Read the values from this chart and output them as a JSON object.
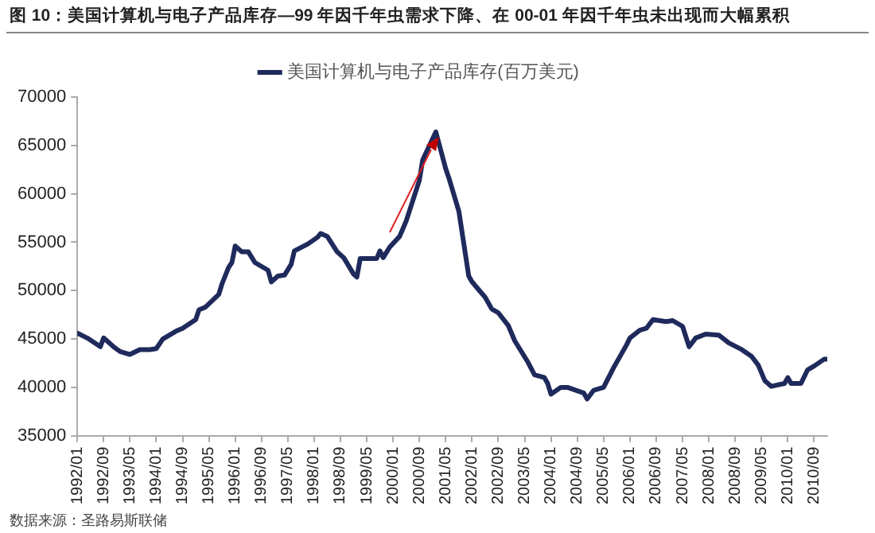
{
  "chart_data": {
    "type": "line",
    "title": "图 10：美国计算机与电子产品库存—99 年因千年虫需求下降、在 00-01 年因千年虫未出现而大幅累积",
    "x": [
      "1992-01",
      "1992-04",
      "1992-08",
      "1992-09",
      "1992-12",
      "1993-02",
      "1993-05",
      "1993-08",
      "1993-11",
      "1994-01",
      "1994-03",
      "1994-07",
      "1994-09",
      "1995-01",
      "1995-02",
      "1995-04",
      "1995-08",
      "1995-09",
      "1995-11",
      "1995-12",
      "1996-01",
      "1996-03",
      "1996-05",
      "1996-07",
      "1996-11",
      "1996-12",
      "1997-02",
      "1997-04",
      "1997-06",
      "1997-07",
      "1997-11",
      "1998-02",
      "1998-03",
      "1998-05",
      "1998-08",
      "1998-10",
      "1999-01",
      "1999-02",
      "1999-03",
      "1999-08",
      "1999-09",
      "1999-10",
      "1999-12",
      "2000-03",
      "2000-05",
      "2000-09",
      "2000-10",
      "2001-02",
      "2001-05",
      "2001-06",
      "2001-09",
      "2001-12",
      "2002-01",
      "2002-05",
      "2002-07",
      "2002-09",
      "2002-12",
      "2003-02",
      "2003-06",
      "2003-08",
      "2003-11",
      "2003-12",
      "2004-01",
      "2004-04",
      "2004-06",
      "2004-11",
      "2004-12",
      "2005-02",
      "2005-05",
      "2005-08",
      "2005-12",
      "2006-01",
      "2006-04",
      "2006-06",
      "2006-08",
      "2006-12",
      "2007-02",
      "2007-05",
      "2007-07",
      "2007-09",
      "2007-12",
      "2008-04",
      "2008-07",
      "2008-11",
      "2009-02",
      "2009-04",
      "2009-06",
      "2009-08",
      "2009-12",
      "2010-01",
      "2010-02",
      "2010-05",
      "2010-07",
      "2010-09",
      "2010-12",
      "2011-01"
    ],
    "series": [
      {
        "name": "美国计算机与电子产品库存(百万美元)",
        "color": "#1f2a5c",
        "values": [
          45600,
          45100,
          44200,
          45100,
          44200,
          43700,
          43400,
          43900,
          43900,
          44000,
          45000,
          45800,
          46100,
          47000,
          48000,
          48300,
          49600,
          50700,
          52400,
          52900,
          54600,
          54000,
          54000,
          52900,
          52100,
          50900,
          51500,
          51600,
          52700,
          54100,
          54800,
          55500,
          55900,
          55600,
          54000,
          53400,
          51700,
          51400,
          53300,
          53300,
          54100,
          53400,
          54500,
          55600,
          57200,
          61400,
          63500,
          66400,
          62600,
          61600,
          58200,
          51500,
          50900,
          49300,
          48100,
          47700,
          46400,
          44800,
          42600,
          41300,
          41000,
          40400,
          39300,
          40000,
          40000,
          39400,
          38800,
          39700,
          40000,
          42000,
          44400,
          45100,
          45900,
          46100,
          47000,
          46800,
          46900,
          46300,
          44200,
          45100,
          45500,
          45400,
          44600,
          43900,
          43200,
          42300,
          40700,
          40100,
          40400,
          41000,
          40400,
          40400,
          41800,
          42200,
          42900,
          42900
        ]
      }
    ],
    "xlim": [
      "1992-01",
      "2011-01"
    ],
    "xticks": [
      {
        "value": "1992-01",
        "label": "1992/01"
      },
      {
        "value": "1992-09",
        "label": "1992/09"
      },
      {
        "value": "1993-05",
        "label": "1993/05"
      },
      {
        "value": "1994-01",
        "label": "1994/01"
      },
      {
        "value": "1994-09",
        "label": "1994/09"
      },
      {
        "value": "1995-05",
        "label": "1995/05"
      },
      {
        "value": "1996-01",
        "label": "1996/01"
      },
      {
        "value": "1996-09",
        "label": "1996/09"
      },
      {
        "value": "1997-05",
        "label": "1997/05"
      },
      {
        "value": "1998-01",
        "label": "1998/01"
      },
      {
        "value": "1998-09",
        "label": "1998/09"
      },
      {
        "value": "1999-05",
        "label": "1999/05"
      },
      {
        "value": "2000-01",
        "label": "2000/01"
      },
      {
        "value": "2000-09",
        "label": "2000/09"
      },
      {
        "value": "2001-05",
        "label": "2001/05"
      },
      {
        "value": "2002-01",
        "label": "2002/01"
      },
      {
        "value": "2002-09",
        "label": "2002/09"
      },
      {
        "value": "2003-05",
        "label": "2003/05"
      },
      {
        "value": "2004-01",
        "label": "2004/01"
      },
      {
        "value": "2004-09",
        "label": "2004/09"
      },
      {
        "value": "2005-05",
        "label": "2005/05"
      },
      {
        "value": "2006-01",
        "label": "2006/01"
      },
      {
        "value": "2006-09",
        "label": "2006/09"
      },
      {
        "value": "2007-05",
        "label": "2007/05"
      },
      {
        "value": "2008-01",
        "label": "2008/01"
      },
      {
        "value": "2008-09",
        "label": "2008/09"
      },
      {
        "value": "2009-05",
        "label": "2009/05"
      },
      {
        "value": "2010-01",
        "label": "2010/01"
      },
      {
        "value": "2010-09",
        "label": "2010/09"
      }
    ],
    "ylim": [
      35000,
      70000
    ],
    "yticks": [
      35000,
      40000,
      45000,
      50000,
      55000,
      60000,
      65000,
      70000
    ],
    "grid": false,
    "legend": "top",
    "marker": "none",
    "line_style": "solid",
    "annotations": [
      "数据来源：圣路易斯联储"
    ]
  }
}
